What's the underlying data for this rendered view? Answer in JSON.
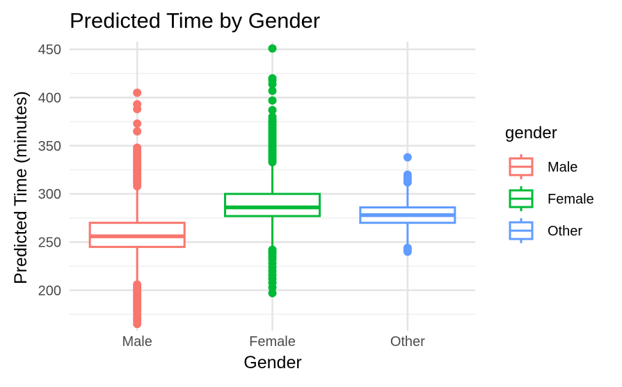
{
  "chart_data": {
    "type": "boxplot",
    "title": "Predicted Time by Gender",
    "xlabel": "Gender",
    "ylabel": "Predicted Time (minutes)",
    "categories": [
      "Male",
      "Female",
      "Other"
    ],
    "ylim": [
      158,
      458
    ],
    "yticks": [
      200,
      250,
      300,
      350,
      400,
      450
    ],
    "grid": true,
    "legend": {
      "title": "gender",
      "position": "right",
      "entries": [
        "Male",
        "Female",
        "Other"
      ]
    },
    "colors": {
      "Male": "#F8766D",
      "Female": "#00BA38",
      "Other": "#619CFF"
    },
    "series": [
      {
        "category": "Male",
        "lower_whisker": 207,
        "q1": 245,
        "median": 256,
        "q3": 270,
        "upper_whisker": 307,
        "outliers": [
          165,
          168,
          170,
          172,
          175,
          178,
          180,
          182,
          184,
          186,
          188,
          190,
          192,
          194,
          196,
          198,
          200,
          202,
          204,
          206,
          308,
          310,
          312,
          314,
          316,
          318,
          320,
          322,
          324,
          326,
          328,
          330,
          332,
          334,
          336,
          338,
          340,
          342,
          344,
          346,
          348,
          365,
          373,
          388,
          393,
          405
        ]
      },
      {
        "category": "Female",
        "lower_whisker": 243,
        "q1": 277,
        "median": 286,
        "q3": 300,
        "upper_whisker": 332,
        "outliers": [
          197,
          203,
          208,
          212,
          216,
          220,
          224,
          228,
          232,
          235,
          238,
          240,
          242,
          333,
          335,
          337,
          339,
          341,
          343,
          345,
          347,
          349,
          351,
          353,
          355,
          357,
          359,
          361,
          363,
          365,
          367,
          369,
          371,
          373,
          375,
          377,
          380,
          387,
          397,
          407,
          414,
          418,
          420,
          451
        ]
      },
      {
        "category": "Other",
        "lower_whisker": 246,
        "q1": 270,
        "median": 278,
        "q3": 286,
        "upper_whisker": 310,
        "outliers": [
          240,
          242,
          244,
          312,
          314,
          316,
          318,
          320,
          338
        ]
      }
    ]
  }
}
